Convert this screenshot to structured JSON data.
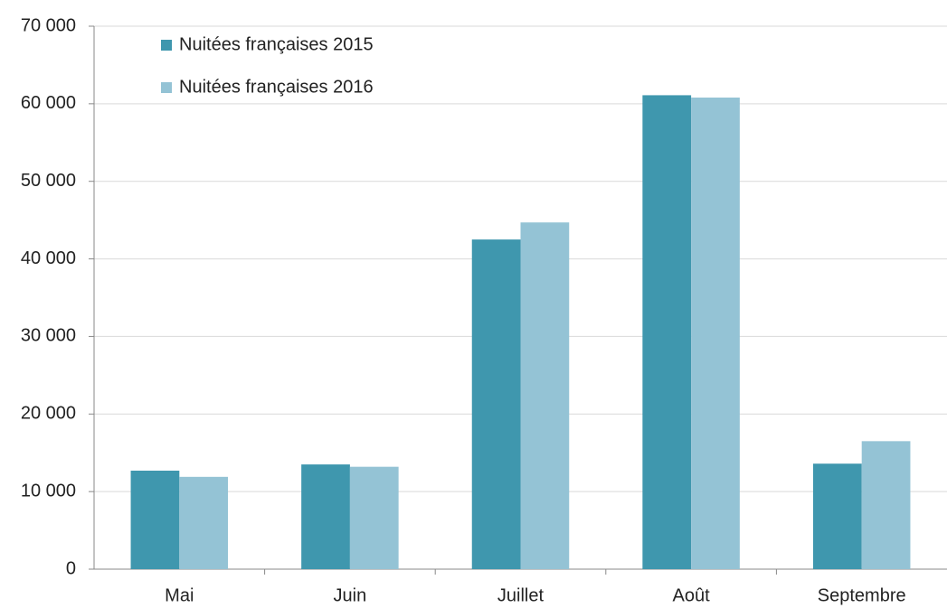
{
  "chart_data": {
    "type": "bar",
    "categories": [
      "Mai",
      "Juin",
      "Juillet",
      "Août",
      "Septembre"
    ],
    "series": [
      {
        "name": "Nuitées françaises 2015",
        "color": "#3f97ae",
        "values": [
          12700,
          13500,
          42500,
          61100,
          13600
        ]
      },
      {
        "name": "Nuitées françaises 2016",
        "color": "#94c3d5",
        "values": [
          11900,
          13200,
          44700,
          60800,
          16500
        ]
      }
    ],
    "ylim": [
      0,
      70000
    ],
    "yticks": [
      0,
      {
        "value": 10000,
        "label": "10 000"
      },
      {
        "value": 20000,
        "label": "20 000"
      },
      {
        "value": 30000,
        "label": "30 000"
      },
      {
        "value": 40000,
        "label": "40 000"
      },
      {
        "value": 50000,
        "label": "50 000"
      },
      {
        "value": 60000,
        "label": "60 000"
      },
      {
        "value": 70000,
        "label": "70 000"
      }
    ],
    "grid": true,
    "legend": "top-left"
  }
}
